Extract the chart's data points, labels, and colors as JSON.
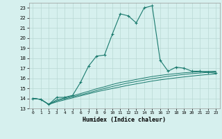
{
  "xlabel": "Humidex (Indice chaleur)",
  "background_color": "#d6f0ee",
  "grid_color": "#b8d8d4",
  "line_color": "#1a7a6e",
  "x_values": [
    0,
    1,
    2,
    3,
    4,
    5,
    6,
    7,
    8,
    9,
    10,
    11,
    12,
    13,
    14,
    15,
    16,
    17,
    18,
    19,
    20,
    21,
    22,
    23
  ],
  "main_line": [
    14.0,
    13.9,
    13.4,
    14.1,
    14.1,
    14.3,
    15.6,
    17.2,
    18.2,
    18.3,
    20.4,
    22.4,
    22.2,
    21.5,
    23.0,
    23.2,
    17.8,
    16.7,
    17.1,
    17.0,
    16.7,
    16.7,
    16.6,
    16.5
  ],
  "flat_line1": [
    14.0,
    13.9,
    13.4,
    13.65,
    13.85,
    14.05,
    14.25,
    14.45,
    14.65,
    14.82,
    14.98,
    15.14,
    15.3,
    15.44,
    15.58,
    15.72,
    15.84,
    15.94,
    16.04,
    16.13,
    16.22,
    16.3,
    16.37,
    16.43
  ],
  "flat_line2": [
    14.0,
    13.9,
    13.4,
    13.75,
    13.95,
    14.15,
    14.35,
    14.55,
    14.78,
    14.98,
    15.18,
    15.36,
    15.53,
    15.67,
    15.82,
    15.96,
    16.08,
    16.19,
    16.29,
    16.38,
    16.46,
    16.52,
    16.58,
    16.62
  ],
  "flat_line3": [
    14.0,
    13.9,
    13.4,
    13.85,
    14.05,
    14.25,
    14.48,
    14.7,
    14.95,
    15.15,
    15.38,
    15.58,
    15.72,
    15.88,
    16.03,
    16.17,
    16.28,
    16.38,
    16.46,
    16.54,
    16.6,
    16.65,
    16.68,
    16.7
  ],
  "ylim": [
    13.0,
    23.5
  ],
  "yticks": [
    13,
    14,
    15,
    16,
    17,
    18,
    19,
    20,
    21,
    22,
    23
  ],
  "xlim": [
    -0.5,
    23.5
  ],
  "xticks": [
    0,
    1,
    2,
    3,
    4,
    5,
    6,
    7,
    8,
    9,
    10,
    11,
    12,
    13,
    14,
    15,
    16,
    17,
    18,
    19,
    20,
    21,
    22,
    23
  ]
}
